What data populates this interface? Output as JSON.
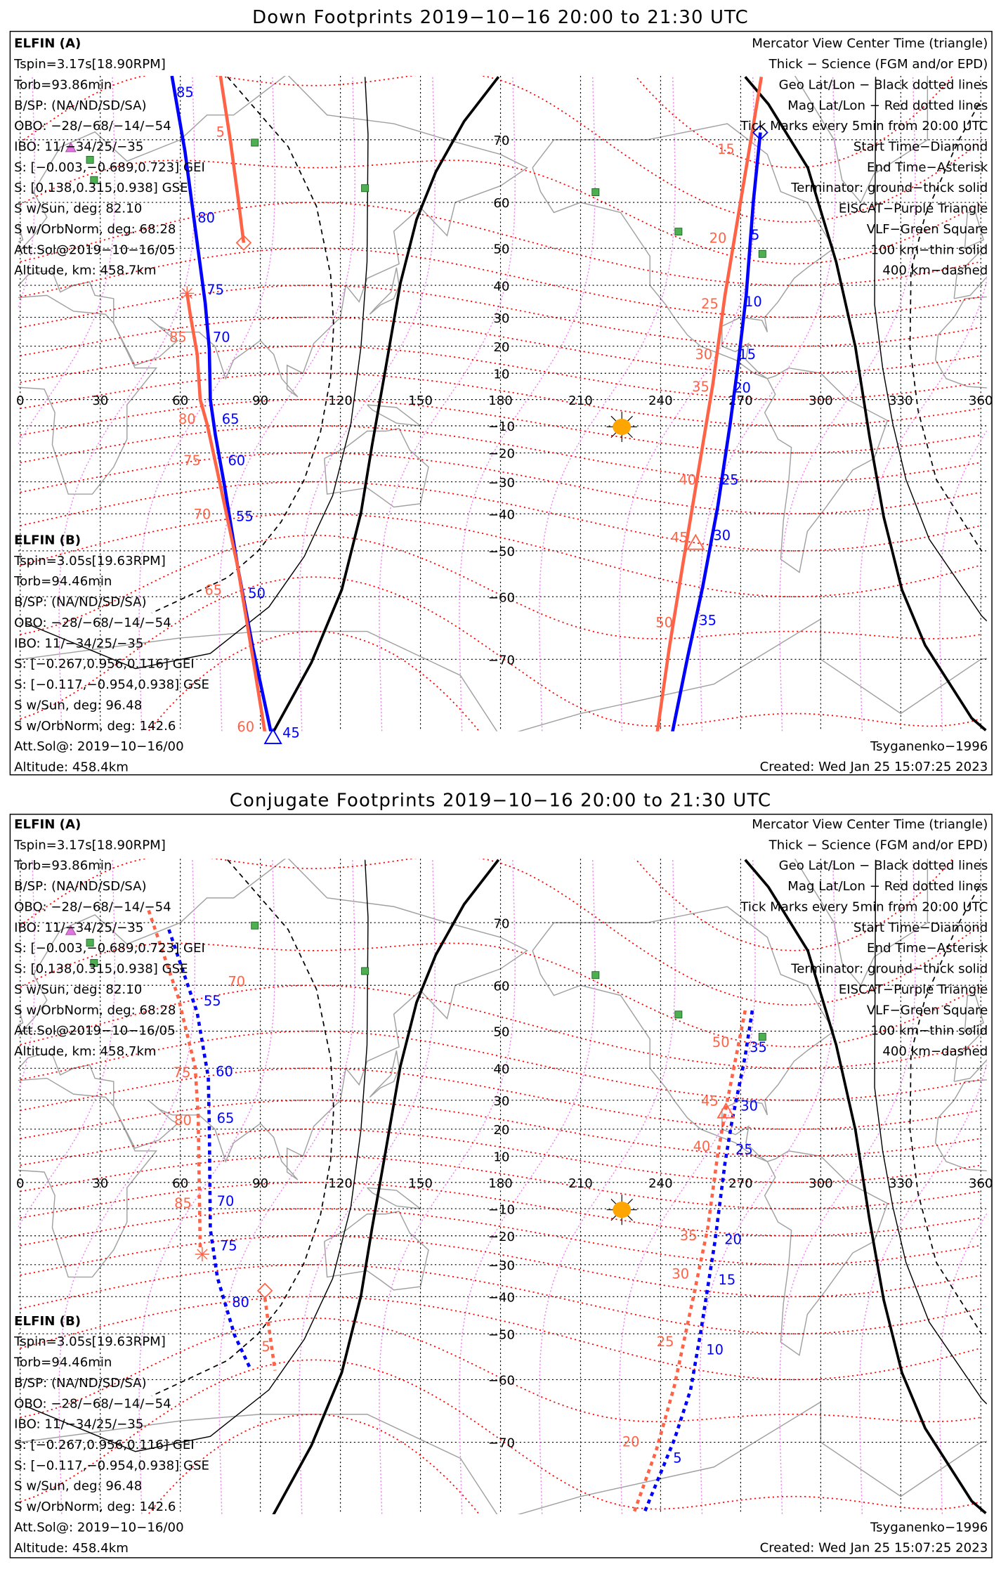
{
  "colors": {
    "elfin_a": "#0000ff",
    "elfin_b": "#ff6347",
    "mag_grid": "#ff0000",
    "mag_lon": "#ee82ee",
    "geo_grid": "#000000",
    "coast": "#a0a0a0",
    "vlf": "#4caf50",
    "eiscat": "#dd77dd",
    "sun": "#ffa500"
  },
  "axes": {
    "lon_labels": [
      "0",
      "30",
      "60",
      "90",
      "120",
      "150",
      "180",
      "210",
      "240",
      "270",
      "300",
      "330",
      "360"
    ],
    "lat_labels": [
      "70",
      "60",
      "50",
      "40",
      "30",
      "20",
      "10",
      "−10",
      "−20",
      "−30",
      "−40",
      "−50",
      "−60",
      "−70"
    ]
  },
  "info": {
    "elfin_a": {
      "name": "ELFIN (A)",
      "lines": [
        "Tspin=3.17s[18.90RPM]",
        "Torb=93.86min",
        "B/SP: (NA/ND/SD/SA)",
        "OBO: −28/−68/−14/−54",
        "IBO: 11/−34/25/−35",
        "S: [−0.003,−0.689,0.723] GEI",
        "S: [0.138,0.315,0.938] GSE",
        "S w/Sun, deg: 82.10",
        "S w/OrbNorm, deg: 68.28",
        "Att.Sol@2019−10−16/05",
        "Altitude, km: 458.7km"
      ]
    },
    "elfin_b": {
      "name": "ELFIN (B)",
      "lines": [
        "Tspin=3.05s[19.63RPM]",
        "Torb=94.46min",
        "B/SP: (NA/ND/SD/SA)",
        "OBO: −28/−68/−14/−54",
        "IBO: 11/−34/25/−35",
        "S: [−0.267,0.956,0.116] GEI",
        "S: [−0.117,−0.954,0.938] GSE",
        "S w/Sun, deg: 96.48",
        "S w/OrbNorm, deg: 142.6",
        "Att.Sol@: 2019−10−16/00",
        "Altitude: 458.4km"
      ]
    },
    "legend": [
      {
        "text": "Mercator View Center Time (triangle)",
        "color": "#000000"
      },
      {
        "text": "Thick − Science (FGM and/or EPD)",
        "color": "#000000"
      },
      {
        "text": "Geo Lat/Lon − Black dotted lines",
        "color": "#000000"
      },
      {
        "text": "Mag Lat/Lon − Red dotted lines",
        "color": "#ff0000"
      },
      {
        "text": "Tick Marks every 5min from 20:00 UTC",
        "color": "#000000"
      },
      {
        "text": "Start Time−Diamond",
        "color": "#000000"
      },
      {
        "text": "End Time−Asterisk",
        "color": "#000000"
      },
      {
        "text": "Terminator: ground−thick solid",
        "color": "#000000"
      },
      {
        "text": "EISCAT−Purple Triangle",
        "color": "#ee82ee"
      },
      {
        "text": "VLF−Green Square",
        "color": "#4caf50"
      },
      {
        "text": "100 km−thin solid",
        "color": "#000000"
      },
      {
        "text": "400 km−dashed",
        "color": "#000000"
      }
    ],
    "model": "Tsyganenko−1996",
    "created": "Created: Wed Jan 25 15:07:25 2023"
  },
  "panels": [
    {
      "title": "Down Footprints 2019−10−16 20:00 to 21:30 UTC",
      "tracks": {
        "a_left": [
          "85",
          "80",
          "75",
          "70",
          "65",
          "60",
          "55",
          "50",
          "45"
        ],
        "a_right": [
          "5",
          "10",
          "15",
          "20",
          "25",
          "30",
          "35"
        ],
        "b_left": [
          "85",
          "80",
          "75",
          "70",
          "65",
          "60"
        ],
        "b_right": [
          "15",
          "20",
          "25",
          "30",
          "35",
          "40",
          "45",
          "50"
        ],
        "b_short": [
          "5"
        ]
      }
    },
    {
      "title": "Conjugate Footprints 2019−10−16 20:00 to 21:30 UTC",
      "tracks": {
        "a_left": [
          "55",
          "60",
          "65",
          "70",
          "75",
          "80"
        ],
        "a_right": [
          "35",
          "30",
          "25",
          "20",
          "15",
          "10",
          "5"
        ],
        "b_left": [
          "70",
          "75",
          "80",
          "85"
        ],
        "b_right": [
          "50",
          "45",
          "40",
          "35",
          "30",
          "25",
          "20"
        ],
        "b_short": [
          "5"
        ]
      }
    }
  ]
}
